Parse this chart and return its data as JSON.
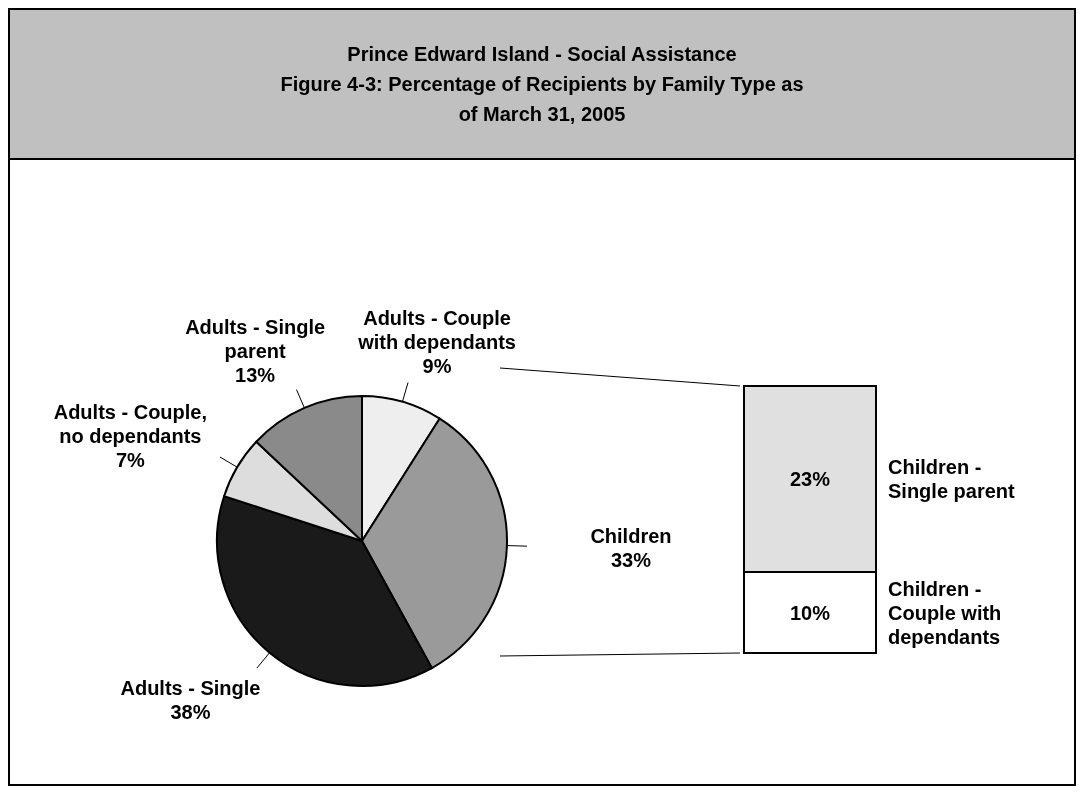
{
  "chart_data": [
    {
      "type": "pie",
      "title": "Prince Edward Island - Social Assistance",
      "subtitle": "Figure 4-3: Percentage of Recipients by Family Type as of March 31, 2005",
      "categories": [
        "Adults - Couple with dependants",
        "Children",
        "Adults - Single",
        "Adults - Couple, no dependants",
        "Adults - Single parent"
      ],
      "values": [
        9,
        33,
        38,
        7,
        13
      ],
      "value_labels": [
        "9%",
        "33%",
        "38%",
        "7%",
        "13%"
      ],
      "colors": [
        "#eeeeee",
        "#9a9a9a",
        "#1a1a1a",
        "#dddddd",
        "#8a8a8a"
      ],
      "legend": false
    },
    {
      "type": "bar",
      "stacked": true,
      "categories": [
        null
      ],
      "series": [
        {
          "name": "Children - Couple with dependants",
          "color": "#ffffff",
          "values": [
            10
          ],
          "value_labels": [
            "10%"
          ]
        },
        {
          "name": "Children - Single parent",
          "color": "#e0e0e0",
          "values": [
            23
          ],
          "value_labels": [
            "23%"
          ]
        }
      ],
      "legend": false
    }
  ]
}
